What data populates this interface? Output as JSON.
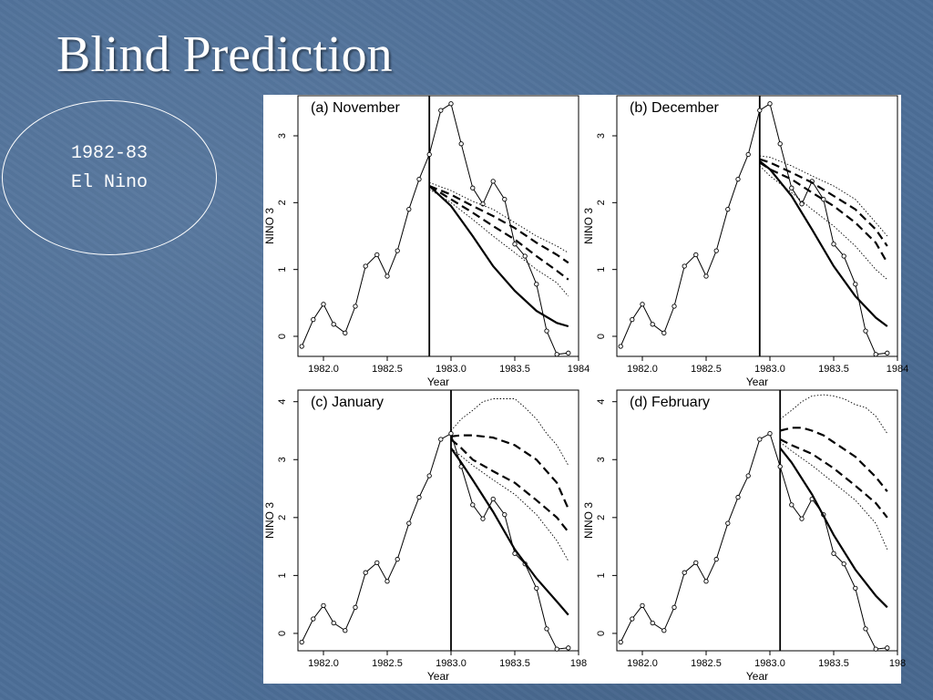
{
  "title": "Blind Prediction",
  "callout": {
    "line1": "1982-83",
    "line2": "El Nino"
  },
  "colors": {
    "background": "#4d6f98",
    "figure": "#ffffff",
    "ink": "#000000"
  },
  "chart_data": [
    {
      "type": "line",
      "title": "(a)  November",
      "xlabel": "Year",
      "ylabel": "NINO 3",
      "xlim": [
        1981.8,
        1984.0
      ],
      "ylim": [
        -0.3,
        3.6
      ],
      "xticks": [
        "1982.0",
        "1982.5",
        "1983.0",
        "1983.5",
        "1984"
      ],
      "yticks": [
        "0",
        "1",
        "2",
        "3"
      ],
      "forecast_start": 1982.83,
      "series": [
        {
          "name": "observed",
          "style": "solid-markers",
          "x": [
            1981.83,
            1981.92,
            1982.0,
            1982.08,
            1982.17,
            1982.25,
            1982.33,
            1982.42,
            1982.5,
            1982.58,
            1982.67,
            1982.75,
            1982.83,
            1982.92,
            1983.0,
            1983.08,
            1983.17,
            1983.25,
            1983.33,
            1983.42,
            1983.5,
            1983.58,
            1983.67,
            1983.75,
            1983.83,
            1983.92
          ],
          "values": [
            -0.15,
            0.25,
            0.48,
            0.18,
            0.05,
            0.45,
            1.05,
            1.22,
            0.9,
            1.28,
            1.9,
            2.35,
            2.72,
            3.38,
            3.48,
            2.88,
            2.22,
            1.98,
            2.32,
            2.05,
            1.38,
            1.2,
            0.78,
            0.08,
            -0.27,
            -0.25
          ]
        },
        {
          "name": "forecast",
          "style": "solid-thick",
          "x": [
            1982.83,
            1983.0,
            1983.17,
            1983.33,
            1983.5,
            1983.67,
            1983.83,
            1983.92
          ],
          "values": [
            2.25,
            1.95,
            1.5,
            1.05,
            0.68,
            0.38,
            0.2,
            0.15
          ]
        },
        {
          "name": "ensemble-mean-upper",
          "style": "dashed",
          "x": [
            1982.83,
            1983.0,
            1983.17,
            1983.33,
            1983.5,
            1983.67,
            1983.83,
            1983.92
          ],
          "values": [
            2.25,
            2.12,
            1.95,
            1.8,
            1.62,
            1.4,
            1.22,
            1.1
          ]
        },
        {
          "name": "ensemble-mean-lower",
          "style": "dashed",
          "x": [
            1982.83,
            1983.0,
            1983.17,
            1983.33,
            1983.5,
            1983.67,
            1983.83,
            1983.92
          ],
          "values": [
            2.25,
            2.05,
            1.85,
            1.65,
            1.45,
            1.2,
            0.98,
            0.85
          ]
        },
        {
          "name": "spread-upper",
          "style": "dotted",
          "x": [
            1982.83,
            1983.0,
            1983.17,
            1983.33,
            1983.5,
            1983.67,
            1983.83,
            1983.92
          ],
          "values": [
            2.3,
            2.18,
            2.02,
            1.9,
            1.7,
            1.5,
            1.35,
            1.25
          ]
        },
        {
          "name": "spread-lower",
          "style": "dotted",
          "x": [
            1982.83,
            1983.0,
            1983.17,
            1983.33,
            1983.5,
            1983.67,
            1983.83,
            1983.92
          ],
          "values": [
            2.2,
            2.0,
            1.75,
            1.5,
            1.25,
            1.0,
            0.8,
            0.6
          ]
        }
      ]
    },
    {
      "type": "line",
      "title": "(b)  December",
      "xlabel": "Year",
      "ylabel": "NINO 3",
      "xlim": [
        1981.8,
        1984.0
      ],
      "ylim": [
        -0.3,
        3.6
      ],
      "xticks": [
        "1982.0",
        "1982.5",
        "1983.0",
        "1983.5",
        "1984"
      ],
      "yticks": [
        "0",
        "1",
        "2",
        "3"
      ],
      "forecast_start": 1982.92,
      "series": [
        {
          "name": "observed",
          "style": "solid-markers",
          "x": [
            1981.83,
            1981.92,
            1982.0,
            1982.08,
            1982.17,
            1982.25,
            1982.33,
            1982.42,
            1982.5,
            1982.58,
            1982.67,
            1982.75,
            1982.83,
            1982.92,
            1983.0,
            1983.08,
            1983.17,
            1983.25,
            1983.33,
            1983.42,
            1983.5,
            1983.58,
            1983.67,
            1983.75,
            1983.83,
            1983.92
          ],
          "values": [
            -0.15,
            0.25,
            0.48,
            0.18,
            0.05,
            0.45,
            1.05,
            1.22,
            0.9,
            1.28,
            1.9,
            2.35,
            2.72,
            3.38,
            3.48,
            2.88,
            2.22,
            1.98,
            2.32,
            2.05,
            1.38,
            1.2,
            0.78,
            0.08,
            -0.27,
            -0.25
          ]
        },
        {
          "name": "forecast",
          "style": "solid-thick",
          "x": [
            1982.92,
            1983.0,
            1983.17,
            1983.33,
            1983.5,
            1983.67,
            1983.83,
            1983.92
          ],
          "values": [
            2.62,
            2.5,
            2.1,
            1.6,
            1.05,
            0.6,
            0.28,
            0.15
          ]
        },
        {
          "name": "ensemble-mean-upper",
          "style": "dashed",
          "x": [
            1982.92,
            1983.0,
            1983.17,
            1983.33,
            1983.5,
            1983.67,
            1983.83,
            1983.92
          ],
          "values": [
            2.65,
            2.6,
            2.45,
            2.3,
            2.1,
            1.9,
            1.6,
            1.35
          ]
        },
        {
          "name": "ensemble-mean-lower",
          "style": "dashed",
          "x": [
            1982.92,
            1983.0,
            1983.17,
            1983.33,
            1983.5,
            1983.67,
            1983.83,
            1983.92
          ],
          "values": [
            2.6,
            2.5,
            2.35,
            2.15,
            1.95,
            1.7,
            1.4,
            1.1
          ]
        },
        {
          "name": "spread-upper",
          "style": "dotted",
          "x": [
            1982.92,
            1983.0,
            1983.17,
            1983.33,
            1983.5,
            1983.67,
            1983.83,
            1983.92
          ],
          "values": [
            2.7,
            2.68,
            2.55,
            2.4,
            2.25,
            2.05,
            1.7,
            1.5
          ]
        },
        {
          "name": "spread-lower",
          "style": "dotted",
          "x": [
            1982.92,
            1983.0,
            1983.17,
            1983.33,
            1983.5,
            1983.67,
            1983.83,
            1983.92
          ],
          "values": [
            2.55,
            2.4,
            2.15,
            1.9,
            1.65,
            1.35,
            1.0,
            0.85
          ]
        }
      ]
    },
    {
      "type": "line",
      "title": "(c)  January",
      "xlabel": "Year",
      "ylabel": "NINO 3",
      "xlim": [
        1981.8,
        1984.0
      ],
      "ylim": [
        -0.3,
        4.2
      ],
      "xticks": [
        "1982.0",
        "1982.5",
        "1983.0",
        "1983.5",
        "198"
      ],
      "yticks": [
        "0",
        "1",
        "2",
        "3",
        "4"
      ],
      "forecast_start": 1983.0,
      "series": [
        {
          "name": "observed",
          "style": "solid-markers",
          "x": [
            1981.83,
            1981.92,
            1982.0,
            1982.08,
            1982.17,
            1982.25,
            1982.33,
            1982.42,
            1982.5,
            1982.58,
            1982.67,
            1982.75,
            1982.83,
            1982.92,
            1983.0,
            1983.08,
            1983.17,
            1983.25,
            1983.33,
            1983.42,
            1983.5,
            1983.58,
            1983.67,
            1983.75,
            1983.83,
            1983.92
          ],
          "values": [
            -0.15,
            0.25,
            0.48,
            0.18,
            0.05,
            0.45,
            1.05,
            1.22,
            0.9,
            1.28,
            1.9,
            2.35,
            2.72,
            3.35,
            3.45,
            2.88,
            2.22,
            1.98,
            2.32,
            2.05,
            1.38,
            1.2,
            0.78,
            0.08,
            -0.27,
            -0.25
          ]
        },
        {
          "name": "forecast",
          "style": "solid-thick",
          "x": [
            1983.0,
            1983.08,
            1983.17,
            1983.33,
            1983.5,
            1983.67,
            1983.83,
            1983.92
          ],
          "values": [
            3.2,
            2.95,
            2.65,
            2.1,
            1.45,
            0.95,
            0.55,
            0.32
          ]
        },
        {
          "name": "ensemble-mean-upper",
          "style": "dashed",
          "x": [
            1983.0,
            1983.08,
            1983.17,
            1983.33,
            1983.5,
            1983.67,
            1983.83,
            1983.92
          ],
          "values": [
            3.4,
            3.42,
            3.42,
            3.38,
            3.25,
            3.0,
            2.6,
            2.15
          ]
        },
        {
          "name": "ensemble-mean-lower",
          "style": "dashed",
          "x": [
            1983.0,
            1983.08,
            1983.17,
            1983.33,
            1983.5,
            1983.67,
            1983.83,
            1983.92
          ],
          "values": [
            3.35,
            3.2,
            3.0,
            2.8,
            2.6,
            2.3,
            2.0,
            1.75
          ]
        },
        {
          "name": "spread-upper",
          "style": "dotted",
          "x": [
            1983.0,
            1983.08,
            1983.17,
            1983.25,
            1983.33,
            1983.42,
            1983.5,
            1983.58,
            1983.67,
            1983.75,
            1983.83,
            1983.92
          ],
          "values": [
            3.5,
            3.7,
            3.85,
            4.0,
            4.05,
            4.05,
            4.05,
            3.9,
            3.7,
            3.45,
            3.25,
            2.9
          ]
        },
        {
          "name": "spread-lower",
          "style": "dotted",
          "x": [
            1983.0,
            1983.17,
            1983.33,
            1983.5,
            1983.67,
            1983.83,
            1983.92
          ],
          "values": [
            3.2,
            2.9,
            2.65,
            2.4,
            2.05,
            1.6,
            1.25
          ]
        }
      ]
    },
    {
      "type": "line",
      "title": "(d)  February",
      "xlabel": "Year",
      "ylabel": "NINO 3",
      "xlim": [
        1981.8,
        1984.0
      ],
      "ylim": [
        -0.3,
        4.2
      ],
      "xticks": [
        "1982.0",
        "1982.5",
        "1983.0",
        "1983.5",
        "198"
      ],
      "yticks": [
        "0",
        "1",
        "2",
        "3",
        "4"
      ],
      "forecast_start": 1983.08,
      "series": [
        {
          "name": "observed",
          "style": "solid-markers",
          "x": [
            1981.83,
            1981.92,
            1982.0,
            1982.08,
            1982.17,
            1982.25,
            1982.33,
            1982.42,
            1982.5,
            1982.58,
            1982.67,
            1982.75,
            1982.83,
            1982.92,
            1983.0,
            1983.08,
            1983.17,
            1983.25,
            1983.33,
            1983.42,
            1983.5,
            1983.58,
            1983.67,
            1983.75,
            1983.83,
            1983.92
          ],
          "values": [
            -0.15,
            0.25,
            0.48,
            0.18,
            0.05,
            0.45,
            1.05,
            1.22,
            0.9,
            1.28,
            1.9,
            2.35,
            2.72,
            3.35,
            3.45,
            2.88,
            2.22,
            1.98,
            2.32,
            2.05,
            1.38,
            1.2,
            0.78,
            0.08,
            -0.27,
            -0.25
          ]
        },
        {
          "name": "forecast",
          "style": "solid-thick",
          "x": [
            1983.08,
            1983.17,
            1983.33,
            1983.5,
            1983.67,
            1983.83,
            1983.92
          ],
          "values": [
            3.2,
            2.95,
            2.4,
            1.7,
            1.1,
            0.65,
            0.45
          ]
        },
        {
          "name": "ensemble-mean-upper",
          "style": "dashed",
          "x": [
            1983.08,
            1983.17,
            1983.25,
            1983.33,
            1983.42,
            1983.5,
            1983.67,
            1983.83,
            1983.92
          ],
          "values": [
            3.5,
            3.55,
            3.55,
            3.5,
            3.42,
            3.3,
            3.05,
            2.7,
            2.45
          ]
        },
        {
          "name": "ensemble-mean-lower",
          "style": "dashed",
          "x": [
            1983.08,
            1983.17,
            1983.33,
            1983.5,
            1983.67,
            1983.83,
            1983.92
          ],
          "values": [
            3.35,
            3.25,
            3.1,
            2.85,
            2.55,
            2.25,
            2.0
          ]
        },
        {
          "name": "spread-upper",
          "style": "dotted",
          "x": [
            1983.08,
            1983.17,
            1983.25,
            1983.33,
            1983.42,
            1983.5,
            1983.58,
            1983.67,
            1983.75,
            1983.83,
            1983.92
          ],
          "values": [
            3.7,
            3.85,
            4.0,
            4.1,
            4.12,
            4.1,
            4.05,
            3.95,
            3.9,
            3.75,
            3.45
          ]
        },
        {
          "name": "spread-lower",
          "style": "dotted",
          "x": [
            1983.08,
            1983.17,
            1983.33,
            1983.5,
            1983.67,
            1983.83,
            1983.92
          ],
          "values": [
            3.3,
            3.15,
            2.9,
            2.6,
            2.3,
            1.9,
            1.45
          ]
        }
      ]
    }
  ]
}
